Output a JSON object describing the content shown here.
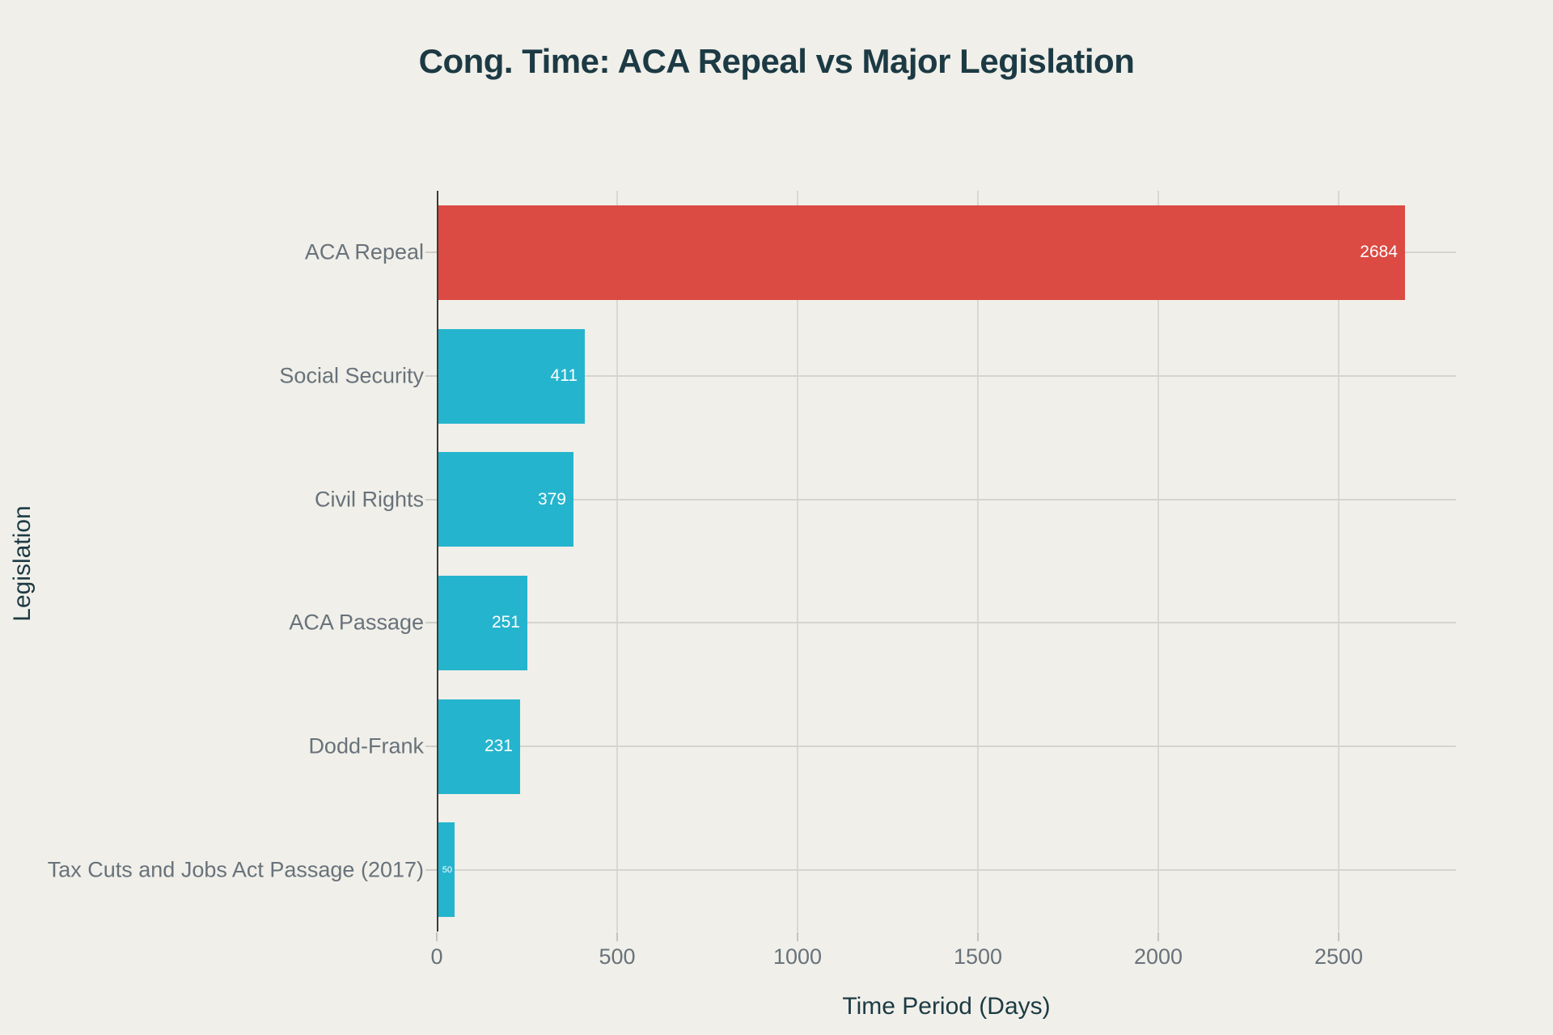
{
  "page": {
    "background_color": "#f0efe9",
    "title_color": "#1c3a44",
    "label_color": "#68727a",
    "grid_color": "#d6d4cd",
    "axis_line_color": "#3a3a3c"
  },
  "chart_data": {
    "type": "bar",
    "orientation": "horizontal",
    "title": "Cong. Time: ACA Repeal vs Major Legislation",
    "xlabel": "Time Period (Days)",
    "ylabel": "Legislation",
    "categories": [
      "ACA Repeal",
      "Social Security",
      "Civil Rights",
      "ACA Passage",
      "Dodd-Frank",
      "Tax Cuts and Jobs Act Passage (2017)"
    ],
    "values": [
      2684,
      411,
      379,
      251,
      231,
      50
    ],
    "value_labels": [
      "2684",
      "411",
      "379",
      "251",
      "231",
      "50"
    ],
    "bar_colors": [
      "#db4a43",
      "#25b4cd",
      "#25b4cd",
      "#25b4cd",
      "#25b4cd",
      "#25b4cd"
    ],
    "highlight_color": "#db4a43",
    "base_color": "#25b4cd",
    "x_ticks": [
      0,
      500,
      1000,
      1500,
      2000,
      2500
    ],
    "xlim": [
      0,
      2825
    ],
    "grid": true,
    "legend": false
  }
}
